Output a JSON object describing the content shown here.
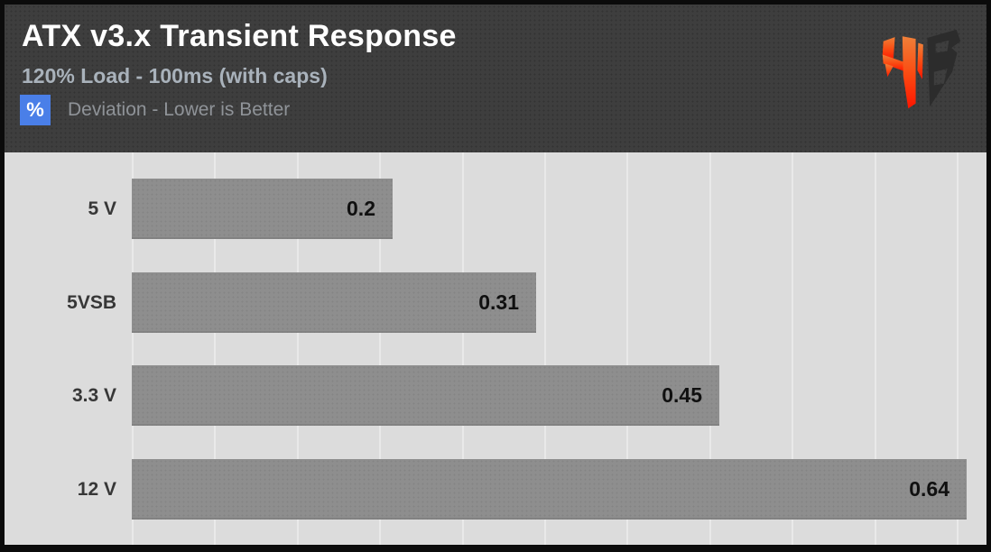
{
  "header": {
    "title": "ATX v3.x Transient Response",
    "subtitle": "120% Load - 100ms (with caps)",
    "unit_badge": "%",
    "note": "Deviation - Lower is Better",
    "colors": {
      "background": "#3e3e3e",
      "title": "#ffffff",
      "subtitle": "#a9b2bb",
      "badge": "#4a7fe8",
      "note": "#8f9398"
    },
    "logo": "hardware-busters-monogram"
  },
  "chart_data": {
    "type": "bar",
    "orientation": "horizontal",
    "title": "ATX v3.x Transient Response",
    "subtitle": "120% Load - 100ms (with caps)",
    "unit": "%",
    "note": "Deviation - Lower is Better",
    "lower_is_better": true,
    "categories": [
      "5 V",
      "5VSB",
      "3.3 V",
      "12 V"
    ],
    "values": [
      0.2,
      0.31,
      0.45,
      0.64
    ],
    "value_labels": [
      "0.2",
      "0.31",
      "0.45",
      "0.64"
    ],
    "xlim": [
      0,
      0.655
    ],
    "grid": "vertical-light",
    "gridline_count": 11,
    "legend_position": "none",
    "colors": {
      "bar": "#8e8e8e",
      "plot_background": "#dcdcdc",
      "gridline": "#e9e9e9",
      "value_label": "#101010",
      "category_label": "#373737",
      "frame": "#0b0b0b"
    }
  }
}
